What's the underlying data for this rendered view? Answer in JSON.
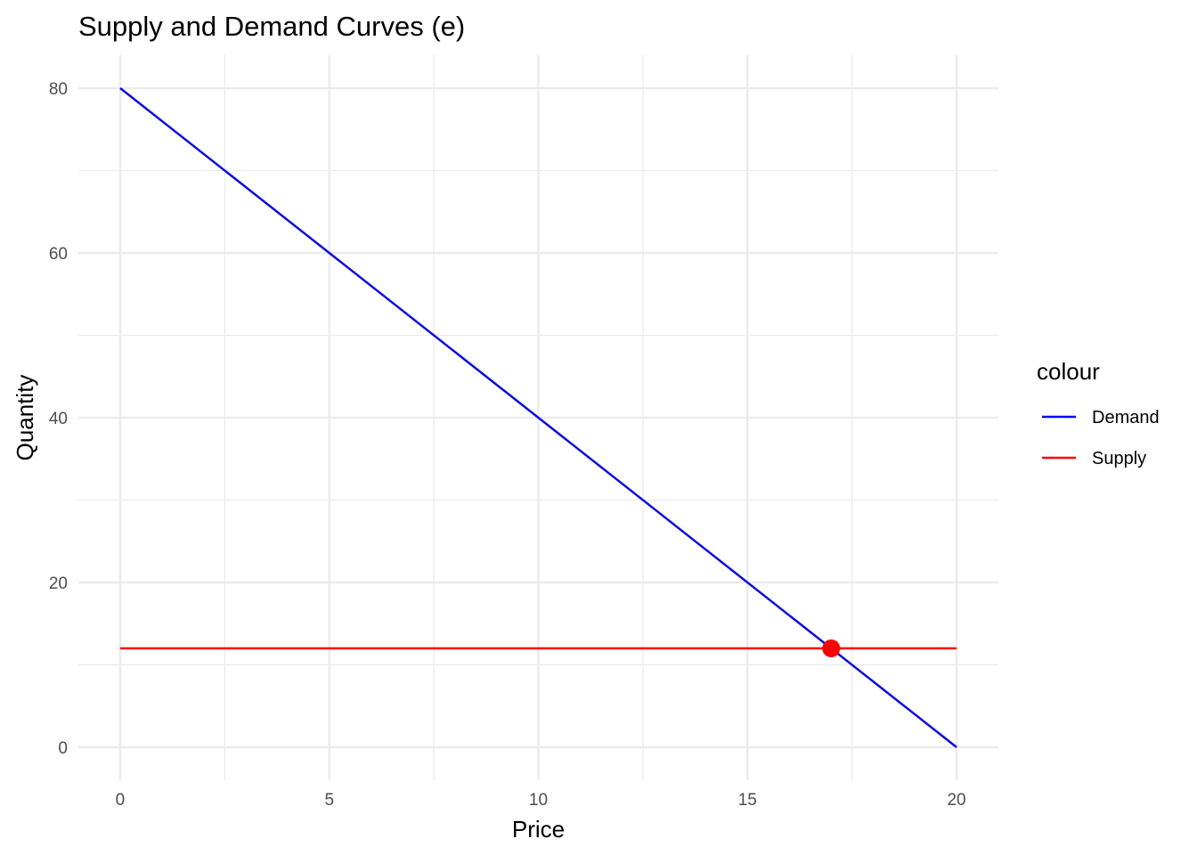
{
  "chart_data": {
    "type": "line",
    "title": "Supply and Demand Curves (e)",
    "xlabel": "Price",
    "ylabel": "Quantity",
    "xlim": [
      -1,
      21
    ],
    "ylim": [
      -4,
      84
    ],
    "x_ticks": [
      0,
      5,
      10,
      15,
      20
    ],
    "y_ticks": [
      0,
      20,
      40,
      60,
      80
    ],
    "x_minor": [
      2.5,
      7.5,
      12.5,
      17.5
    ],
    "y_minor": [
      10,
      30,
      50,
      70
    ],
    "grid": true,
    "legend": {
      "title": "colour",
      "placement": "right",
      "entries": [
        {
          "name": "Demand",
          "color": "#0000ff"
        },
        {
          "name": "Supply",
          "color": "#ff0000"
        }
      ]
    },
    "series": [
      {
        "name": "Demand",
        "color": "#0000ff",
        "points": [
          [
            0,
            80
          ],
          [
            20,
            0
          ]
        ]
      },
      {
        "name": "Supply",
        "color": "#ff0000",
        "points": [
          [
            0,
            12
          ],
          [
            20,
            12
          ]
        ]
      }
    ],
    "equilibrium": {
      "x": 17,
      "y": 12,
      "color": "#ff0000"
    }
  }
}
